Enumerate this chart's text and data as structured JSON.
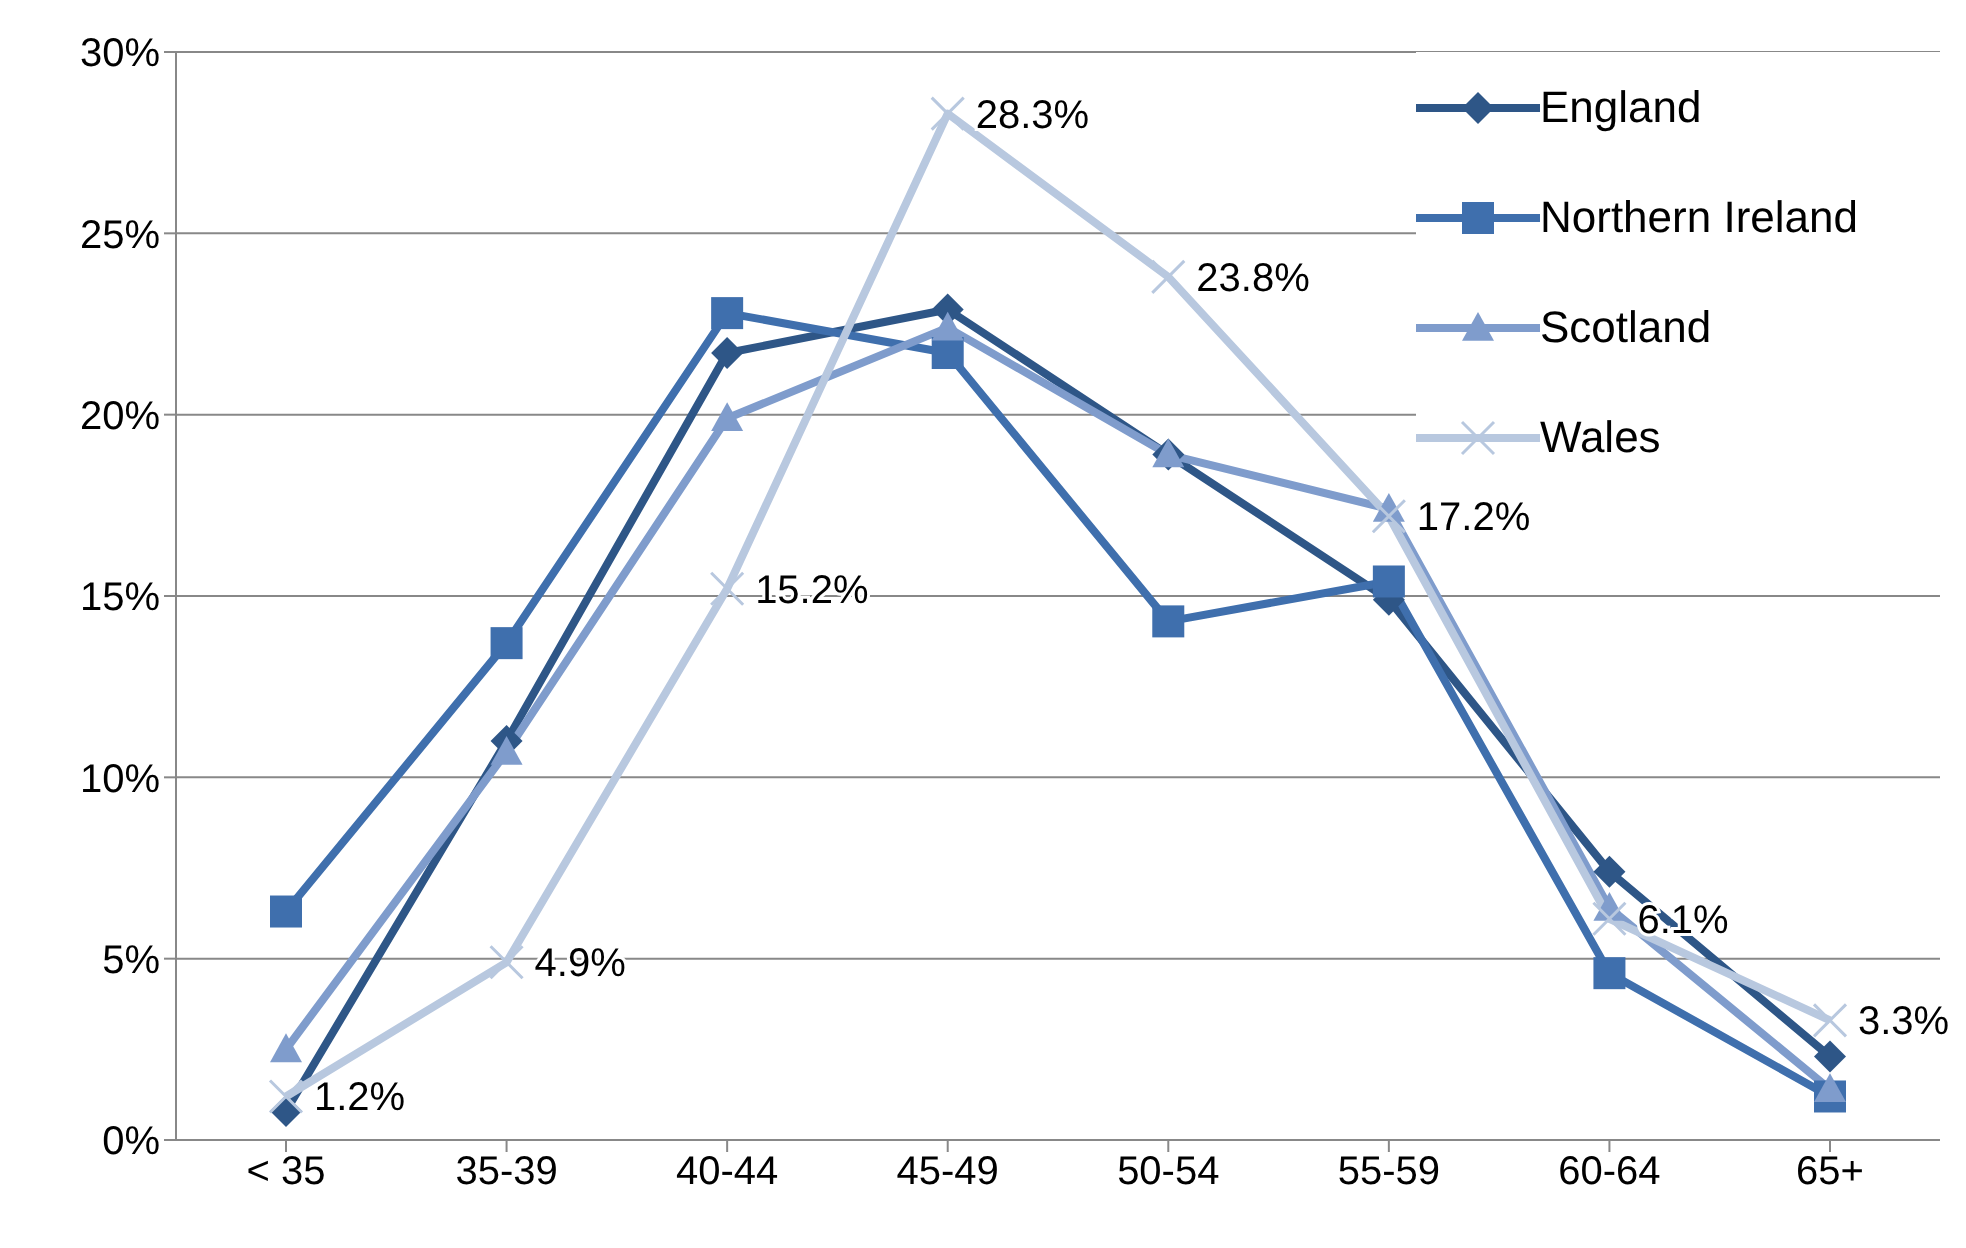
{
  "chart_data": {
    "type": "line",
    "categories": [
      "< 35",
      "35-39",
      "40-44",
      "45-49",
      "50-54",
      "55-59",
      "60-64",
      "65+"
    ],
    "series": [
      {
        "name": "England",
        "color": "#2e5687",
        "marker": "diamond",
        "values": [
          0.8,
          11.0,
          21.7,
          22.9,
          18.9,
          14.9,
          7.4,
          2.3
        ]
      },
      {
        "name": "Northern Ireland",
        "color": "#3f6fad",
        "marker": "square",
        "values": [
          6.3,
          13.7,
          22.8,
          21.7,
          14.3,
          15.4,
          4.6,
          1.2
        ]
      },
      {
        "name": "Scotland",
        "color": "#7f9ccc",
        "marker": "triangle",
        "values": [
          2.5,
          10.7,
          19.9,
          22.4,
          18.9,
          17.4,
          6.4,
          1.4
        ]
      },
      {
        "name": "Wales",
        "color": "#b8c8df",
        "marker": "cross",
        "values": [
          1.2,
          4.9,
          15.2,
          28.3,
          23.8,
          17.2,
          6.1,
          3.3
        ],
        "value_labels": [
          "1.2%",
          "4.9%",
          "15.2%",
          "28.3%",
          "23.8%",
          "17.2%",
          "6.1%",
          "3.3%"
        ]
      }
    ],
    "ylim": [
      0,
      30
    ],
    "yticks": [
      {
        "value": 0,
        "label": "0%"
      },
      {
        "value": 5,
        "label": "5%"
      },
      {
        "value": 10,
        "label": "10%"
      },
      {
        "value": 15,
        "label": "15%"
      },
      {
        "value": 20,
        "label": "20%"
      },
      {
        "value": 25,
        "label": "25%"
      },
      {
        "value": 30,
        "label": "30%"
      }
    ],
    "grid": "y",
    "legend": "top right",
    "line_style": "solid"
  }
}
